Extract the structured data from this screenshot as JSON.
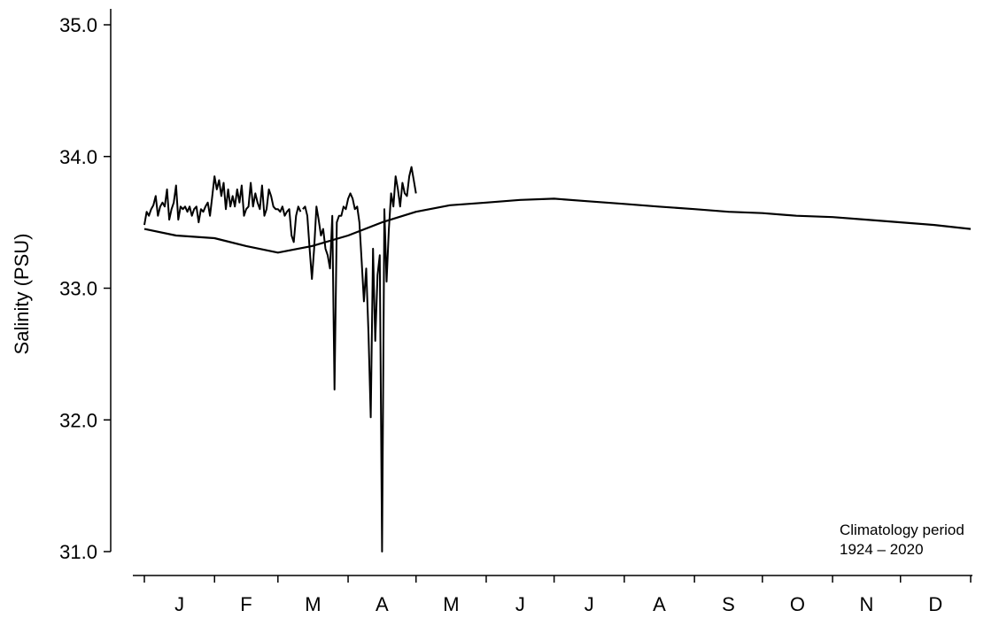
{
  "chart_data": {
    "type": "line",
    "title": "",
    "xlabel": "",
    "ylabel": "Salinity (PSU)",
    "ylim": [
      31.0,
      35.0
    ],
    "yticks": [
      "31.0",
      "32.0",
      "33.0",
      "34.0",
      "35.0"
    ],
    "x_unit": "day of year",
    "xlim": [
      1,
      366
    ],
    "month_labels": [
      "J",
      "F",
      "M",
      "A",
      "M",
      "J",
      "J",
      "A",
      "S",
      "O",
      "N",
      "D"
    ],
    "month_boundaries": [
      1,
      32,
      60,
      91,
      121,
      152,
      182,
      213,
      244,
      274,
      305,
      335,
      366
    ],
    "annotation": {
      "line1": "Climatology period",
      "line2": "1924 – 2020"
    },
    "grid": false,
    "series": [
      {
        "role": "climatology",
        "x": [
          1,
          15,
          32,
          46,
          60,
          75,
          91,
          106,
          121,
          136,
          152,
          167,
          182,
          197,
          213,
          228,
          244,
          259,
          274,
          289,
          305,
          320,
          335,
          350,
          366
        ],
        "values": [
          33.45,
          33.4,
          33.38,
          33.32,
          33.27,
          33.32,
          33.4,
          33.5,
          33.58,
          33.63,
          33.65,
          33.67,
          33.68,
          33.66,
          33.64,
          33.62,
          33.6,
          33.58,
          33.57,
          33.55,
          33.54,
          33.52,
          33.5,
          33.48,
          33.45
        ]
      },
      {
        "role": "daily observations",
        "segments": [
          {
            "x": [
              1,
              2,
              3,
              4,
              5,
              6,
              7,
              8,
              9,
              10,
              11,
              12,
              13,
              14,
              15,
              16,
              17,
              18,
              19,
              20,
              21,
              22,
              23,
              24,
              25,
              26,
              27,
              28,
              29,
              30,
              31,
              32,
              33,
              34,
              35,
              36,
              37,
              38,
              39,
              40,
              41,
              42,
              43,
              44,
              45,
              46,
              47,
              48,
              49,
              50,
              51,
              52,
              53,
              54,
              55,
              56,
              57,
              58,
              59,
              60,
              61,
              62,
              63,
              64,
              65,
              66,
              67,
              68,
              69,
              70
            ],
            "values": [
              33.48,
              33.58,
              33.55,
              33.6,
              33.63,
              33.7,
              33.55,
              33.62,
              33.65,
              33.62,
              33.75,
              33.52,
              33.6,
              33.65,
              33.78,
              33.52,
              33.62,
              33.6,
              33.62,
              33.58,
              33.62,
              33.55,
              33.6,
              33.62,
              33.5,
              33.6,
              33.58,
              33.62,
              33.65,
              33.55,
              33.7,
              33.85,
              33.75,
              33.82,
              33.7,
              33.8,
              33.6,
              33.75,
              33.62,
              33.7,
              33.62,
              33.75,
              33.65,
              33.78,
              33.55,
              33.6,
              33.62,
              33.8,
              33.62,
              33.72,
              33.65,
              33.6,
              33.78,
              33.55,
              33.6,
              33.75,
              33.7,
              33.62,
              33.6,
              33.6,
              33.58,
              33.62,
              33.55,
              33.58,
              33.6,
              33.4,
              33.35,
              33.55,
              33.62,
              33.58
            ]
          },
          {
            "x": [
              71,
              72,
              73,
              74,
              75,
              76,
              77,
              78,
              79,
              80,
              81,
              82,
              83,
              84,
              85,
              86,
              87,
              88,
              89,
              90,
              91,
              92,
              93,
              94,
              95,
              96,
              97,
              98,
              99,
              100,
              101,
              102,
              103,
              104,
              105,
              106,
              107,
              108,
              109,
              110,
              111,
              112,
              113,
              114,
              115,
              116,
              117,
              118,
              119,
              120,
              121
            ],
            "values": [
              33.6,
              33.62,
              33.55,
              33.3,
              33.07,
              33.3,
              33.62,
              33.52,
              33.4,
              33.45,
              33.3,
              33.25,
              33.15,
              33.55,
              32.23,
              33.5,
              33.55,
              33.55,
              33.62,
              33.6,
              33.68,
              33.72,
              33.68,
              33.6,
              33.62,
              33.5,
              33.2,
              32.9,
              33.15,
              32.65,
              32.02,
              33.3,
              32.6,
              33.1,
              33.25,
              31.0,
              33.6,
              33.05,
              33.45,
              33.72,
              33.62,
              33.85,
              33.75,
              33.62,
              33.8,
              33.72,
              33.7,
              33.85,
              33.92,
              33.82,
              33.72
            ]
          }
        ]
      }
    ]
  }
}
